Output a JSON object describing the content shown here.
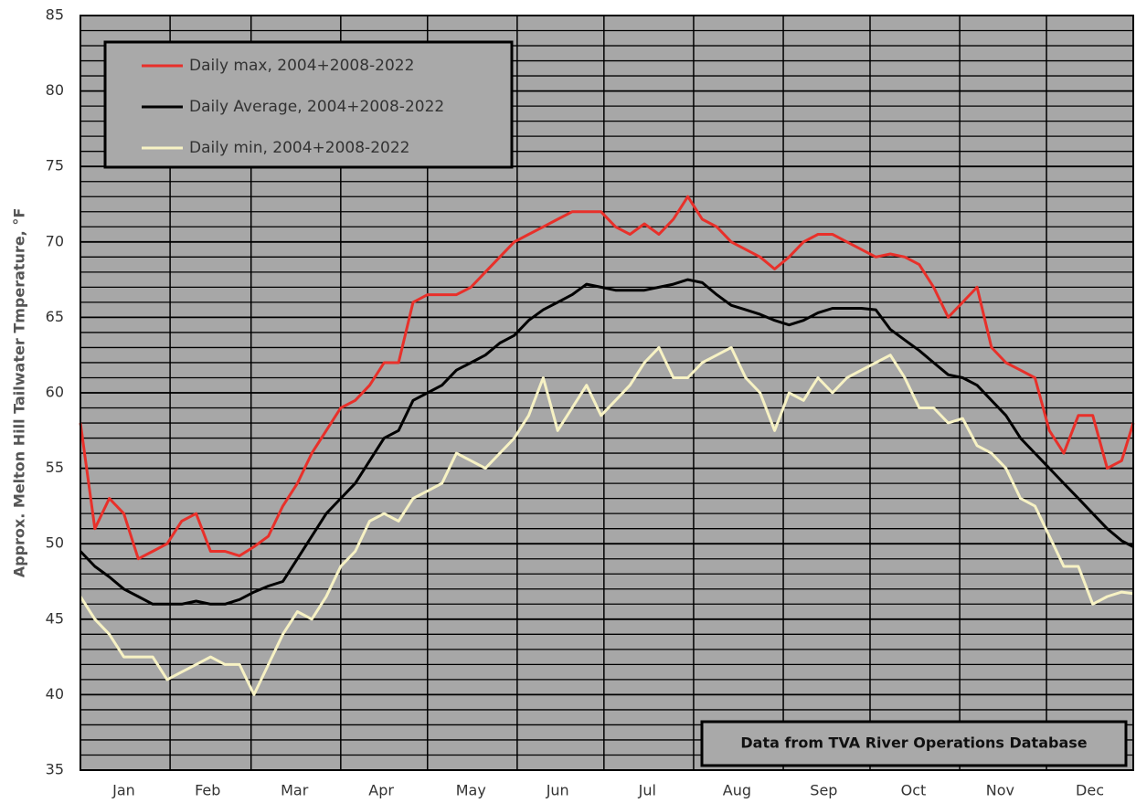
{
  "chart_data": {
    "type": "line",
    "ylabel": "Approx. Melton Hill Tailwater Tmperature, °F",
    "annotation": "Data from TVA River Operations Database",
    "x": [
      1,
      6,
      11,
      16,
      21,
      26,
      31,
      36,
      41,
      46,
      51,
      56,
      61,
      66,
      71,
      76,
      81,
      86,
      91,
      96,
      101,
      106,
      111,
      116,
      121,
      126,
      131,
      136,
      141,
      146,
      151,
      156,
      161,
      166,
      171,
      176,
      181,
      186,
      191,
      196,
      201,
      206,
      211,
      216,
      221,
      226,
      231,
      236,
      241,
      246,
      251,
      256,
      261,
      266,
      271,
      276,
      281,
      286,
      291,
      296,
      301,
      306,
      311,
      316,
      321,
      326,
      331,
      336,
      341,
      346,
      351,
      356,
      361,
      365
    ],
    "xlim": [
      1,
      365
    ],
    "xticks": [
      {
        "value": 16,
        "label": "Jan"
      },
      {
        "value": 45,
        "label": "Feb"
      },
      {
        "value": 75,
        "label": "Mar"
      },
      {
        "value": 105,
        "label": "Apr"
      },
      {
        "value": 136,
        "label": "May"
      },
      {
        "value": 166,
        "label": "Jun"
      },
      {
        "value": 197,
        "label": "Jul"
      },
      {
        "value": 228,
        "label": "Aug"
      },
      {
        "value": 258,
        "label": "Sep"
      },
      {
        "value": 289,
        "label": "Oct"
      },
      {
        "value": 319,
        "label": "Nov"
      },
      {
        "value": 350,
        "label": "Dec"
      }
    ],
    "x_gridlines": [
      32,
      60,
      91,
      121,
      152,
      182,
      213,
      244,
      274,
      305,
      335
    ],
    "ylim": [
      35,
      85
    ],
    "yticks": [
      35,
      40,
      45,
      50,
      55,
      60,
      65,
      70,
      75,
      80,
      85
    ],
    "yminor_step": 1,
    "grid": true,
    "legend": "upper left",
    "series": [
      {
        "name": "Daily max, 2004+2008-2022",
        "color": "#e8302a",
        "values": [
          58,
          51,
          53,
          52,
          49,
          49.5,
          50,
          51.5,
          52,
          49.5,
          49.5,
          49.2,
          49.8,
          50.5,
          52.5,
          54,
          56,
          57.5,
          59,
          59.5,
          60.5,
          62,
          62,
          66,
          66.5,
          66.5,
          66.5,
          67,
          68,
          69,
          70,
          70.5,
          71,
          71.5,
          72,
          72,
          72,
          71,
          70.5,
          71.2,
          70.5,
          71.5,
          73,
          71.5,
          71,
          70,
          69.5,
          69,
          68.2,
          69,
          70,
          70.5,
          70.5,
          70,
          69.5,
          69,
          69.2,
          69,
          68.5,
          67,
          65,
          66,
          67,
          63,
          62,
          61.5,
          61,
          57.5,
          56,
          58.5,
          58.5,
          55,
          55.5,
          58
        ]
      },
      {
        "name": "Daily Average, 2004+2008-2022",
        "color": "#000000",
        "values": [
          49.5,
          48.5,
          47.8,
          47,
          46.5,
          46,
          46,
          46,
          46.2,
          46,
          46,
          46.3,
          46.8,
          47.2,
          47.5,
          49,
          50.5,
          52,
          53,
          54,
          55.5,
          57,
          57.5,
          59.5,
          60,
          60.5,
          61.5,
          62,
          62.5,
          63.3,
          63.8,
          64.8,
          65.5,
          66,
          66.5,
          67.2,
          67,
          66.8,
          66.8,
          66.8,
          67,
          67.2,
          67.5,
          67.3,
          66.5,
          65.8,
          65.5,
          65.2,
          64.8,
          64.5,
          64.8,
          65.3,
          65.6,
          65.6,
          65.6,
          65.5,
          64.2,
          63.5,
          62.8,
          62,
          61.2,
          61,
          60.5,
          59.5,
          58.5,
          57,
          56,
          55,
          54,
          53,
          52,
          51,
          50.2,
          49.8
        ]
      },
      {
        "name": "Daily min, 2004+2008-2022",
        "color": "#f7f2c4",
        "values": [
          46.5,
          45,
          44,
          42.5,
          42.5,
          42.5,
          41,
          41.5,
          42,
          42.5,
          42,
          42,
          40,
          42,
          44,
          45.5,
          45,
          46.5,
          48.5,
          49.5,
          51.5,
          52,
          51.5,
          53,
          53.5,
          54,
          56,
          55.5,
          55,
          56,
          57,
          58.5,
          61,
          57.5,
          59,
          60.5,
          58.5,
          59.5,
          60.5,
          62,
          63,
          61,
          61,
          62,
          62.5,
          63,
          61,
          60,
          57.5,
          60,
          59.5,
          61,
          60,
          61,
          61.5,
          62,
          62.5,
          61,
          59,
          59,
          58,
          58.3,
          56.5,
          56,
          55,
          53,
          52.5,
          50.5,
          48.5,
          48.5,
          46,
          46.5,
          46.8,
          46.7
        ]
      }
    ]
  }
}
